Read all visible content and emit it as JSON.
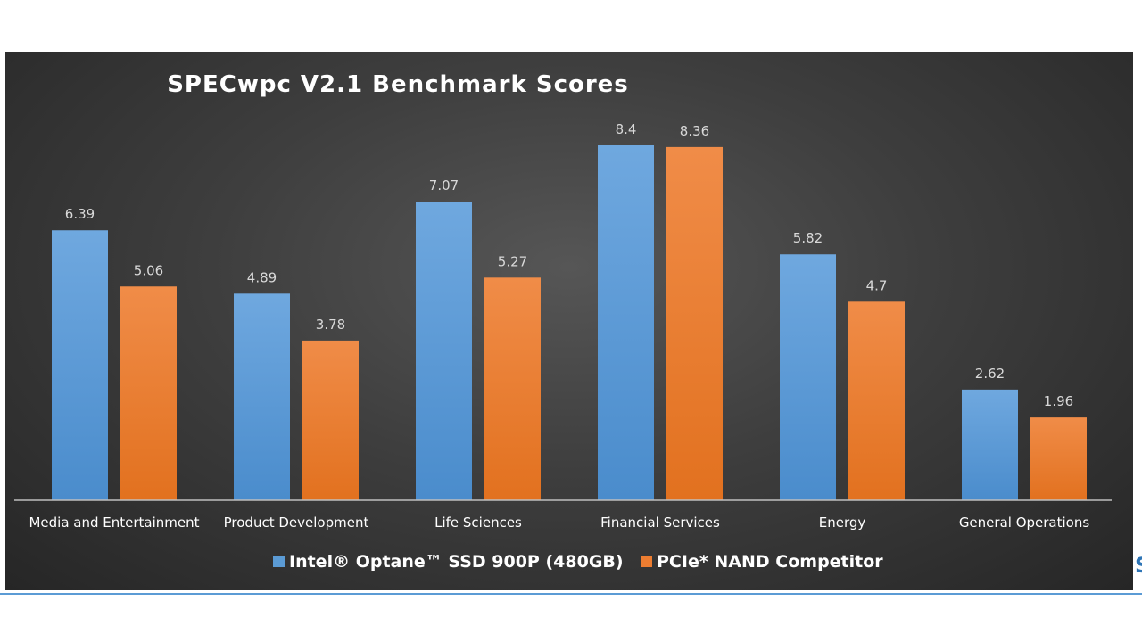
{
  "chart_data": {
    "type": "bar",
    "title": "SPECwpc V2.1 Benchmark Scores",
    "categories": [
      "Media and Entertainment",
      "Product Development",
      "Life Sciences",
      "Financial Services",
      "Energy",
      "General Operations"
    ],
    "series": [
      {
        "name": "Intel® Optane™ SSD 900P (480GB)",
        "color": "#5b9bd5",
        "values": [
          6.39,
          4.89,
          7.07,
          8.4,
          5.82,
          2.62
        ],
        "labels": [
          "6.39",
          "4.89",
          "7.07",
          "8.4",
          "5.82",
          "2.62"
        ]
      },
      {
        "name": "PCIe* NAND Competitor",
        "color": "#ed7d31",
        "values": [
          5.06,
          3.78,
          5.27,
          8.36,
          4.7,
          1.96
        ],
        "labels": [
          "5.06",
          "3.78",
          "5.27",
          "8.36",
          "4.7",
          "1.96"
        ]
      }
    ],
    "ylim": [
      0,
      8.8
    ],
    "grid": false,
    "legend": "bottom-center",
    "background": "#3c3c3c"
  },
  "edge_text": "S"
}
